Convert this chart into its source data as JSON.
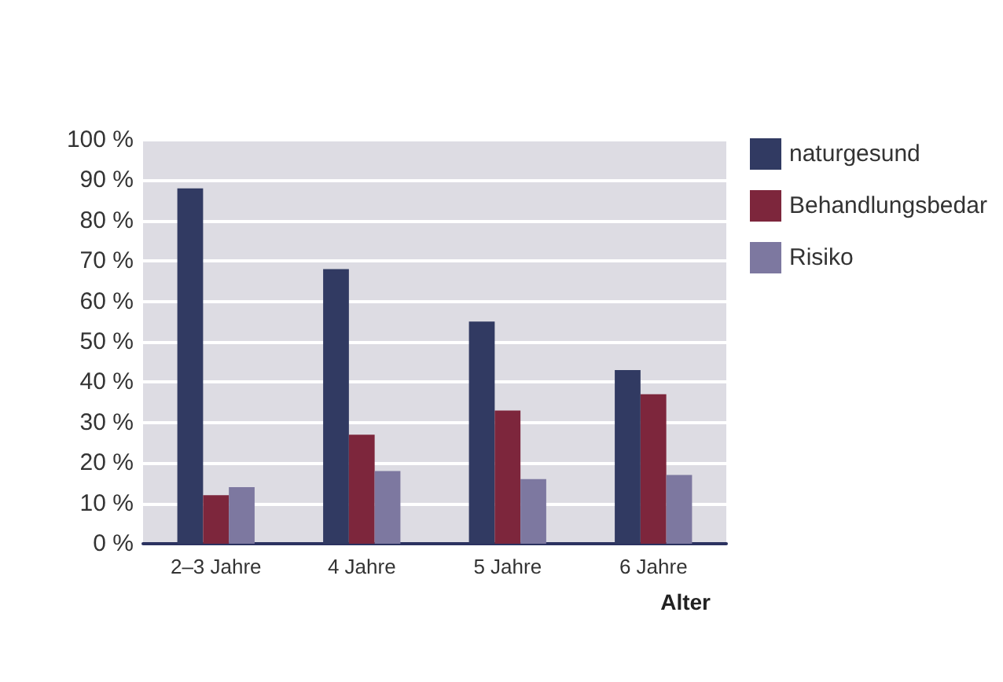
{
  "chart_data": {
    "type": "bar",
    "xlabel": "Alter",
    "categories": [
      "2–3 Jahre",
      "4 Jahre",
      "5 Jahre",
      "6 Jahre"
    ],
    "series": [
      {
        "name": "naturgesund",
        "color": "#313a62",
        "values": [
          88,
          68,
          55,
          43
        ]
      },
      {
        "name": "Behandlungsbedar",
        "color": "#7d263c",
        "values": [
          12,
          27,
          33,
          37
        ]
      },
      {
        "name": "Risiko",
        "color": "#7d78a0",
        "values": [
          14,
          18,
          16,
          17
        ]
      }
    ],
    "ylim": [
      0,
      100
    ],
    "yticks": [
      {
        "value": 0,
        "label": "0 %"
      },
      {
        "value": 10,
        "label": "10 %"
      },
      {
        "value": 20,
        "label": "20 %"
      },
      {
        "value": 30,
        "label": "30 %"
      },
      {
        "value": 40,
        "label": "40 %"
      },
      {
        "value": 50,
        "label": "50 %"
      },
      {
        "value": 60,
        "label": "60 %"
      },
      {
        "value": 70,
        "label": "70 %"
      },
      {
        "value": 80,
        "label": "80 %"
      },
      {
        "value": 90,
        "label": "90 %"
      },
      {
        "value": 100,
        "label": "100 %"
      }
    ],
    "grid": "y",
    "legend": "top right"
  }
}
